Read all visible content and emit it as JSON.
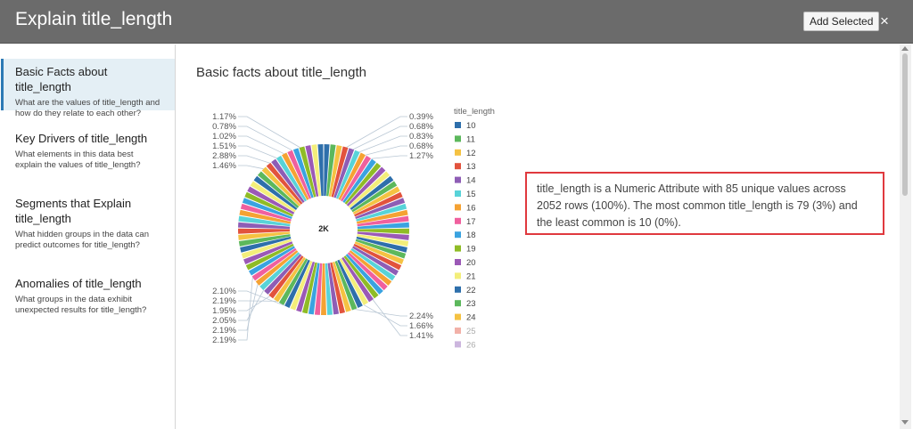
{
  "dialog": {
    "title": "Explain title_length",
    "add_selected_label": "Add Selected",
    "close_label": "×"
  },
  "sidebar": {
    "items": [
      {
        "title": "Basic Facts about title_length",
        "desc": "What are the values of title_length and how do they relate to each other?",
        "active": true
      },
      {
        "title": "Key Drivers of title_length",
        "desc": "What elements in this data best explain the values of title_length?",
        "active": false
      },
      {
        "title": "Segments that Explain title_length",
        "desc": "What hidden groups in the data can predict outcomes for title_length?",
        "active": false
      },
      {
        "title": "Anomalies of title_length",
        "desc": "What groups in the data exhibit unexpected results for title_length?",
        "active": false
      }
    ]
  },
  "main": {
    "section_title": "Basic facts about title_length",
    "insight_text": "title_length is a Numeric Attribute with 85 unique values across 2052 rows (100%). The most common title_length is 79 (3%) and the least common is 10 (0%)."
  },
  "chart_data": {
    "type": "pie",
    "center_label": "2K",
    "legend_title": "title_length",
    "legend_placement": "right",
    "legend": [
      {
        "label": "10",
        "color": "#2e6fab"
      },
      {
        "label": "11",
        "color": "#5cb85c"
      },
      {
        "label": "12",
        "color": "#f5c242"
      },
      {
        "label": "13",
        "color": "#e2533d"
      },
      {
        "label": "14",
        "color": "#8e5db5"
      },
      {
        "label": "15",
        "color": "#58d3d8"
      },
      {
        "label": "16",
        "color": "#f5a233"
      },
      {
        "label": "17",
        "color": "#f0609e"
      },
      {
        "label": "18",
        "color": "#3aa3e0"
      },
      {
        "label": "19",
        "color": "#8fbc26"
      },
      {
        "label": "20",
        "color": "#9b59b6"
      },
      {
        "label": "21",
        "color": "#f3ee7a"
      },
      {
        "label": "22",
        "color": "#2e6fab"
      },
      {
        "label": "23",
        "color": "#5cb85c"
      },
      {
        "label": "24",
        "color": "#f5c242"
      },
      {
        "label": "25",
        "color": "#e2533d"
      },
      {
        "label": "26",
        "color": "#8e5db5"
      }
    ],
    "palette": [
      "#2e6fab",
      "#5cb85c",
      "#f5c242",
      "#e2533d",
      "#8e5db5",
      "#58d3d8",
      "#f5a233",
      "#f0609e",
      "#3aa3e0",
      "#8fbc26",
      "#9b59b6",
      "#f3ee7a"
    ],
    "slice_count": 85,
    "labels_left_top": [
      "1.17%",
      "0.78%",
      "1.02%",
      "1.51%",
      "2.88%",
      "1.46%"
    ],
    "labels_right_top": [
      "0.39%",
      "0.68%",
      "0.83%",
      "0.68%",
      "1.27%"
    ],
    "labels_left_bottom": [
      "2.10%",
      "2.19%",
      "1.95%",
      "2.05%",
      "2.19%",
      "2.19%"
    ],
    "labels_right_bottom": [
      "2.24%",
      "1.66%",
      "1.41%"
    ]
  }
}
